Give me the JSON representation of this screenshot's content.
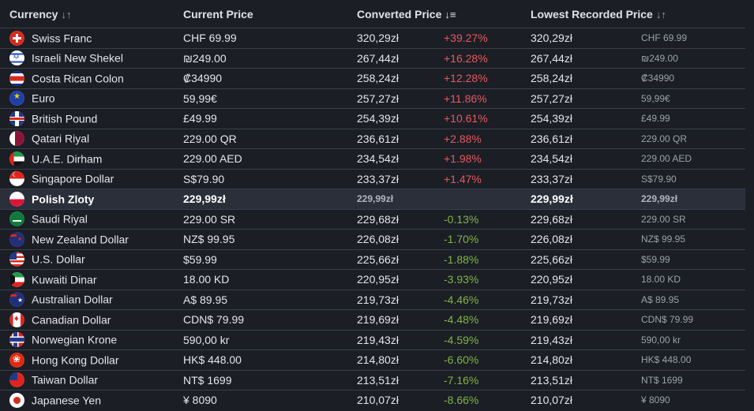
{
  "headers": {
    "currency": "Currency",
    "current_price": "Current Price",
    "converted_price": "Converted Price",
    "lowest_price": "Lowest Recorded Price",
    "sort_icon": "sort-arrows-icon",
    "sort_active_icon": "sort-descending-icon"
  },
  "rows": [
    {
      "flag": "f-ch",
      "name": "Swiss Franc",
      "current": "CHF 69.99",
      "converted": "320,29zł",
      "diff": "+39.27%",
      "dir": "pos",
      "lowest": "320,29zł",
      "lowest_orig": "CHF 69.99"
    },
    {
      "flag": "f-il",
      "name": "Israeli New Shekel",
      "current": "₪249.00",
      "converted": "267,44zł",
      "diff": "+16.28%",
      "dir": "pos",
      "lowest": "267,44zł",
      "lowest_orig": "₪249.00"
    },
    {
      "flag": "f-cr",
      "name": "Costa Rican Colon",
      "current": "₡34990",
      "converted": "258,24zł",
      "diff": "+12.28%",
      "dir": "pos",
      "lowest": "258,24zł",
      "lowest_orig": "₡34990"
    },
    {
      "flag": "f-eu",
      "name": "Euro",
      "current": "59,99€",
      "converted": "257,27zł",
      "diff": "+11.86%",
      "dir": "pos",
      "lowest": "257,27zł",
      "lowest_orig": "59,99€"
    },
    {
      "flag": "f-gb",
      "name": "British Pound",
      "current": "£49.99",
      "converted": "254,39zł",
      "diff": "+10.61%",
      "dir": "pos",
      "lowest": "254,39zł",
      "lowest_orig": "£49.99"
    },
    {
      "flag": "f-qa",
      "name": "Qatari Riyal",
      "current": "229.00 QR",
      "converted": "236,61zł",
      "diff": "+2.88%",
      "dir": "pos",
      "lowest": "236,61zł",
      "lowest_orig": "229.00 QR"
    },
    {
      "flag": "f-ae",
      "name": "U.A.E. Dirham",
      "current": "229.00 AED",
      "converted": "234,54zł",
      "diff": "+1.98%",
      "dir": "pos",
      "lowest": "234,54zł",
      "lowest_orig": "229.00 AED"
    },
    {
      "flag": "f-sg",
      "name": "Singapore Dollar",
      "current": "S$79.90",
      "converted": "233,37zł",
      "diff": "+1.47%",
      "dir": "pos",
      "lowest": "233,37zł",
      "lowest_orig": "S$79.90"
    },
    {
      "flag": "f-pl",
      "name": "Polish Zloty",
      "current": "229,99zł",
      "converted": "229,99zł",
      "diff": "",
      "dir": "base",
      "lowest": "229,99zł",
      "lowest_orig": "229,99zł"
    },
    {
      "flag": "f-sa",
      "name": "Saudi Riyal",
      "current": "229.00 SR",
      "converted": "229,68zł",
      "diff": "-0.13%",
      "dir": "neg",
      "lowest": "229,68zł",
      "lowest_orig": "229.00 SR"
    },
    {
      "flag": "f-nz",
      "name": "New Zealand Dollar",
      "current": "NZ$ 99.95",
      "converted": "226,08zł",
      "diff": "-1.70%",
      "dir": "neg",
      "lowest": "226,08zł",
      "lowest_orig": "NZ$ 99.95"
    },
    {
      "flag": "f-us",
      "name": "U.S. Dollar",
      "current": "$59.99",
      "converted": "225,66zł",
      "diff": "-1.88%",
      "dir": "neg",
      "lowest": "225,66zł",
      "lowest_orig": "$59.99"
    },
    {
      "flag": "f-kw",
      "name": "Kuwaiti Dinar",
      "current": "18.00 KD",
      "converted": "220,95zł",
      "diff": "-3.93%",
      "dir": "neg",
      "lowest": "220,95zł",
      "lowest_orig": "18.00 KD"
    },
    {
      "flag": "f-au",
      "name": "Australian Dollar",
      "current": "A$ 89.95",
      "converted": "219,73zł",
      "diff": "-4.46%",
      "dir": "neg",
      "lowest": "219,73zł",
      "lowest_orig": "A$ 89.95"
    },
    {
      "flag": "f-ca",
      "name": "Canadian Dollar",
      "current": "CDN$ 79.99",
      "converted": "219,69zł",
      "diff": "-4.48%",
      "dir": "neg",
      "lowest": "219,69zł",
      "lowest_orig": "CDN$ 79.99"
    },
    {
      "flag": "f-no",
      "name": "Norwegian Krone",
      "current": "590,00 kr",
      "converted": "219,43zł",
      "diff": "-4.59%",
      "dir": "neg",
      "lowest": "219,43zł",
      "lowest_orig": "590,00 kr"
    },
    {
      "flag": "f-hk",
      "name": "Hong Kong Dollar",
      "current": "HK$ 448.00",
      "converted": "214,80zł",
      "diff": "-6.60%",
      "dir": "neg",
      "lowest": "214,80zł",
      "lowest_orig": "HK$ 448.00"
    },
    {
      "flag": "f-tw",
      "name": "Taiwan Dollar",
      "current": "NT$ 1699",
      "converted": "213,51zł",
      "diff": "-7.16%",
      "dir": "neg",
      "lowest": "213,51zł",
      "lowest_orig": "NT$ 1699"
    },
    {
      "flag": "f-jp",
      "name": "Japanese Yen",
      "current": "¥ 8090",
      "converted": "210,07zł",
      "diff": "-8.66%",
      "dir": "neg",
      "lowest": "210,07zł",
      "lowest_orig": "¥ 8090"
    }
  ]
}
